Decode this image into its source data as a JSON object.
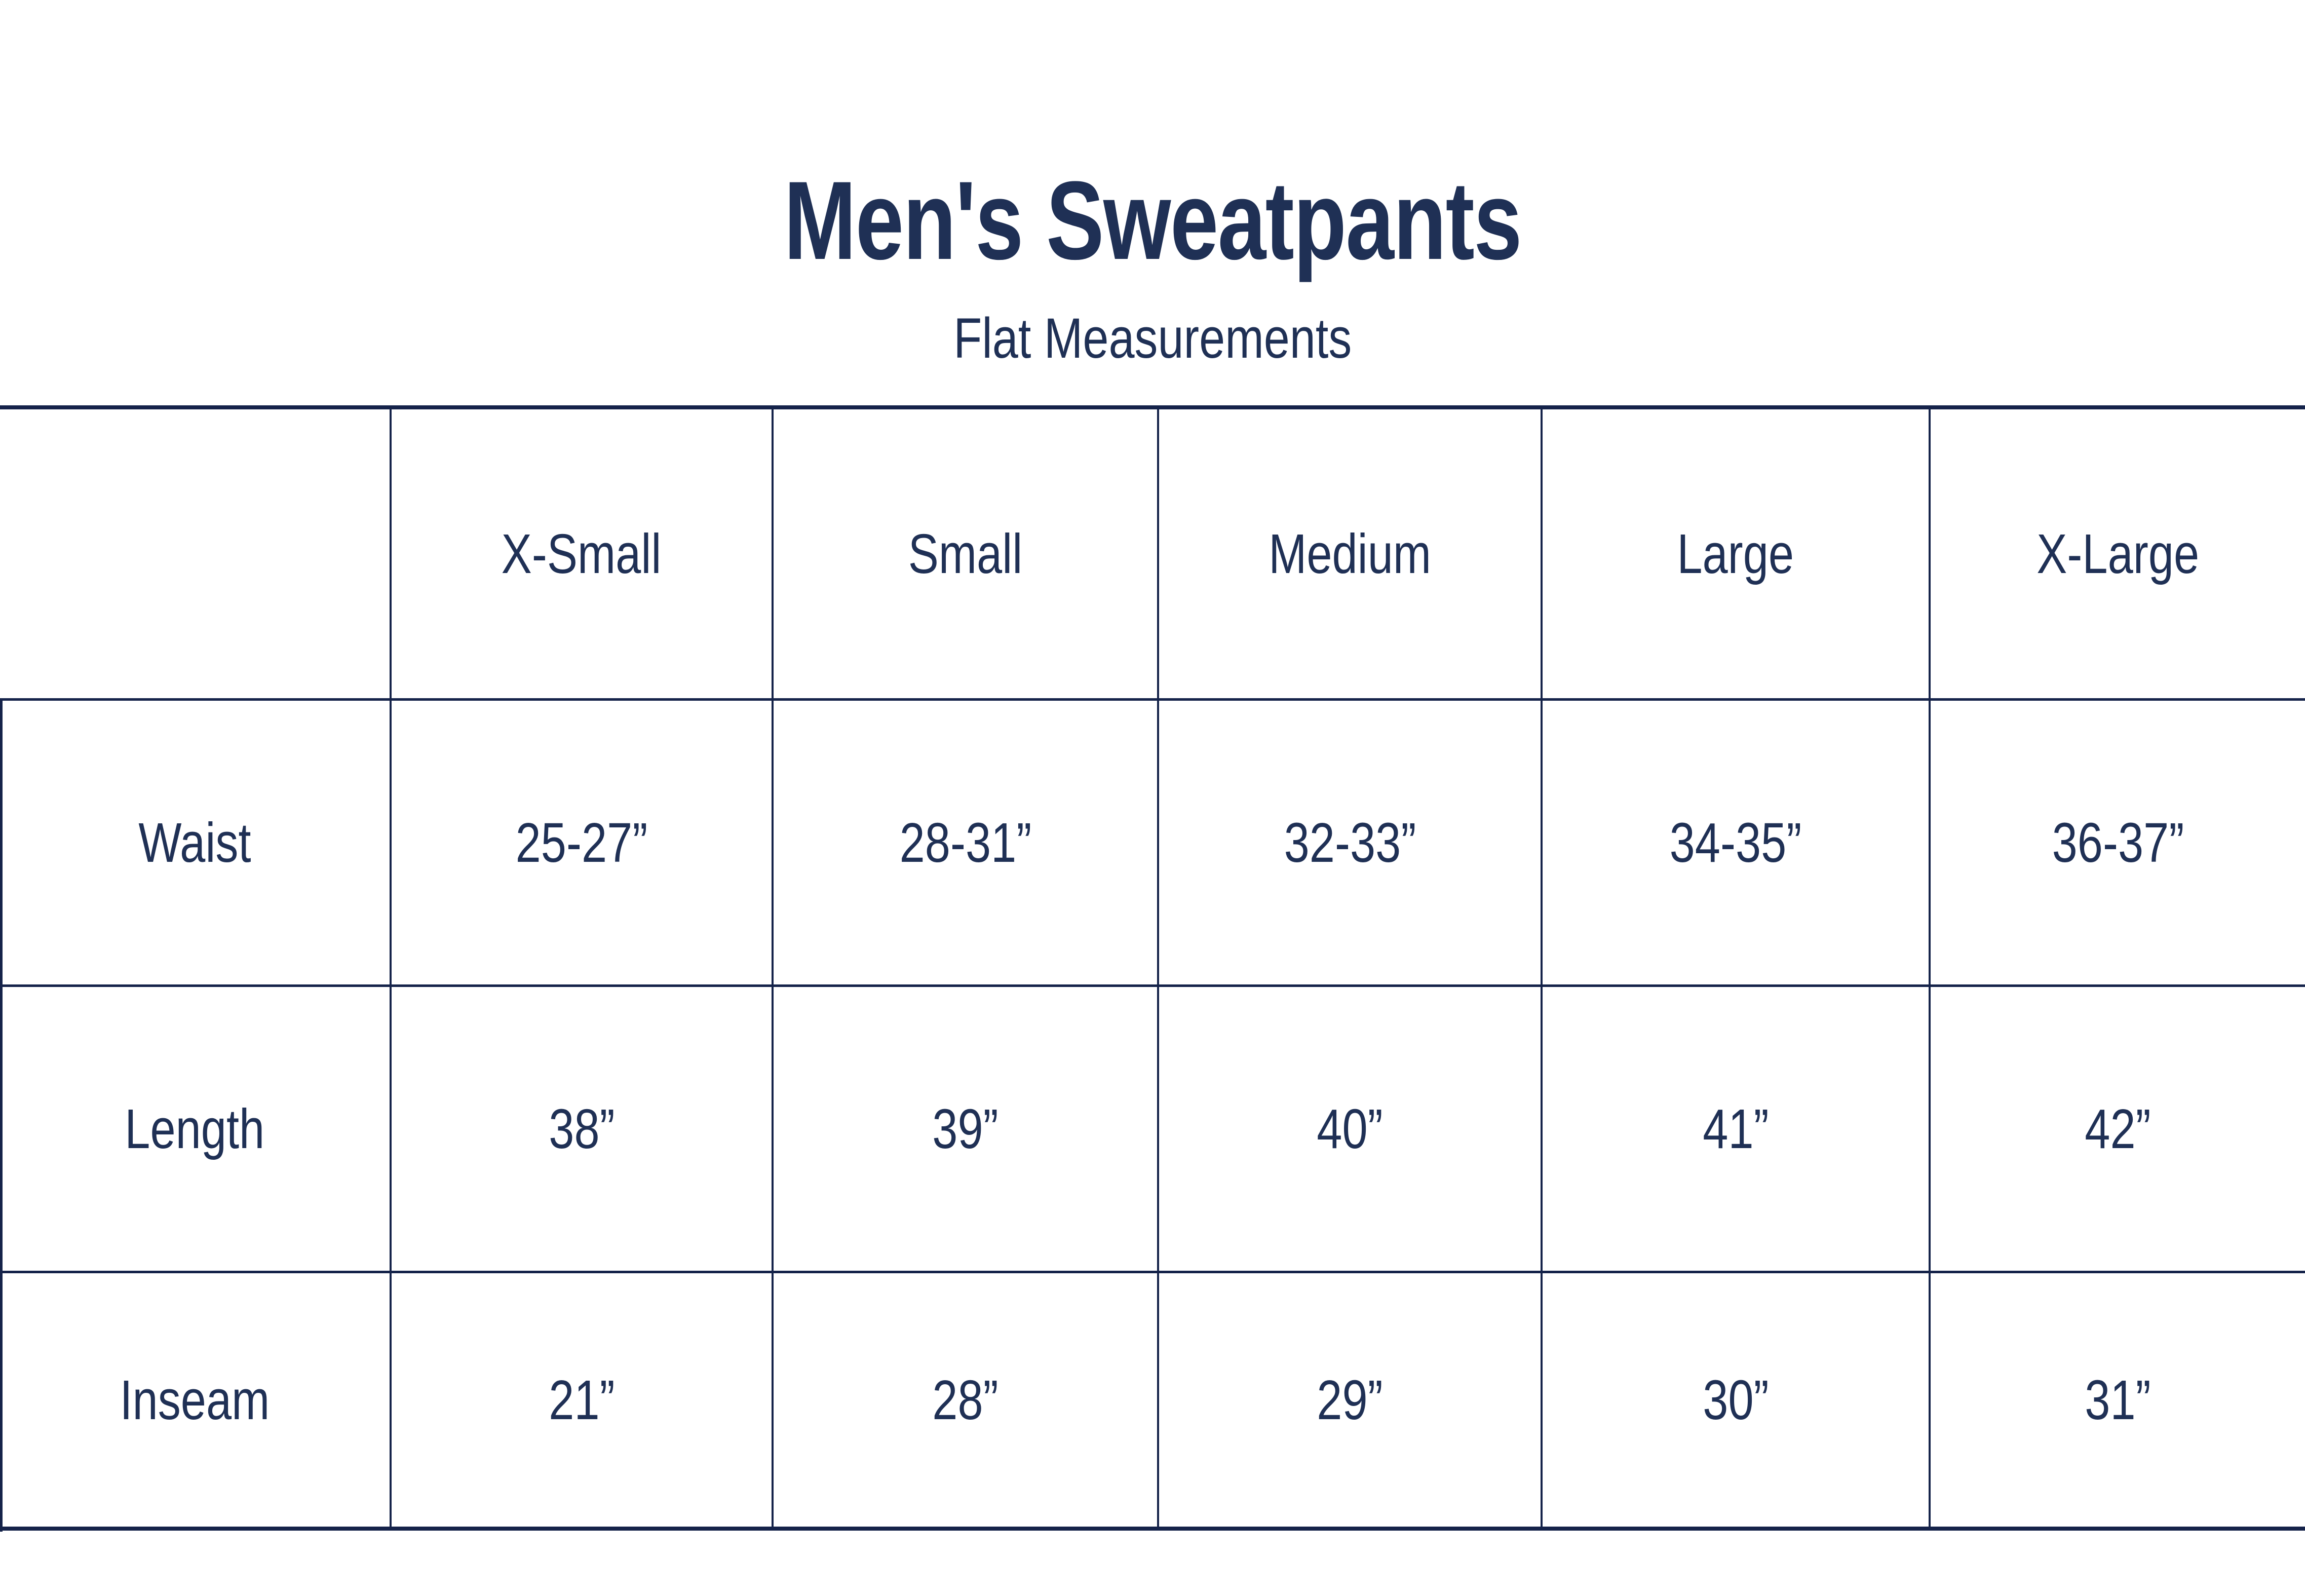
{
  "title": "Men's Sweatpants",
  "subtitle": "Flat Measurements",
  "colors": {
    "text_navy": "#1f3055",
    "grid_navy": "#15234a",
    "background": "#ffffff"
  },
  "chart_data": {
    "type": "table",
    "title": "Men's Sweatpants",
    "subtitle": "Flat Measurements",
    "columns": [
      "",
      "X-Small",
      "Small",
      "Medium",
      "Large",
      "X-Large"
    ],
    "rows": [
      {
        "label": "Waist",
        "values": [
          "25-27”",
          "28-31”",
          "32-33”",
          "34-35”",
          "36-37”"
        ]
      },
      {
        "label": "Length",
        "values": [
          "38”",
          "39”",
          "40”",
          "41”",
          "42”"
        ]
      },
      {
        "label": "Inseam",
        "values": [
          "21”",
          "28”",
          "29”",
          "30”",
          "31”"
        ]
      }
    ],
    "layout": {
      "grid": true,
      "header_row": true,
      "first_column_is_row_labels": true,
      "units": "inches"
    }
  }
}
